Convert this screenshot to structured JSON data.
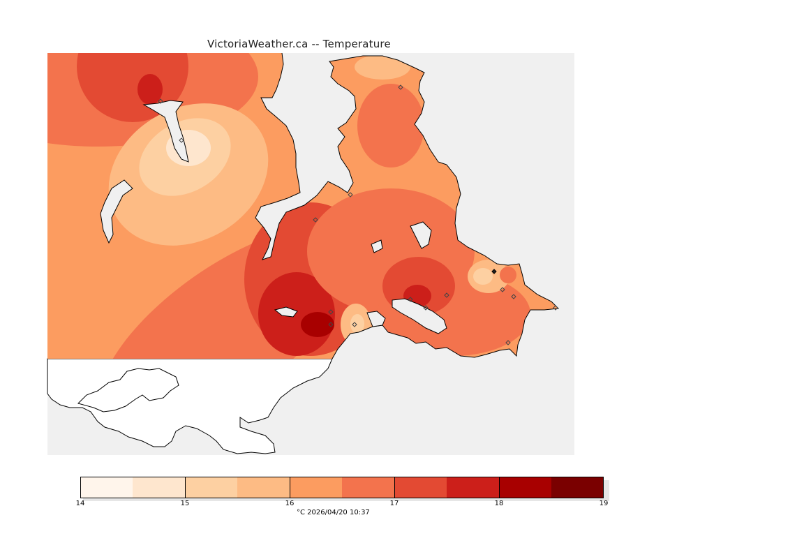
{
  "title": "VictoriaWeather.ca -- Temperature",
  "legend": {
    "unit_and_time": "°C  2026/04/20 10:37",
    "ticks": [
      "14",
      "15",
      "16",
      "17",
      "18",
      "19"
    ],
    "colors": [
      "#fff5eb",
      "#fee6ce",
      "#fdd0a2",
      "#fdbb84",
      "#fc9c60",
      "#f3734d",
      "#e34a33",
      "#cc1f1a",
      "#a80000",
      "#7a0000"
    ]
  },
  "colors": {
    "water": "#f0f0f0",
    "land_outside_grid": "#ffffff",
    "coastline": "#000000"
  },
  "stations_icon": "diamond-station-icon"
}
